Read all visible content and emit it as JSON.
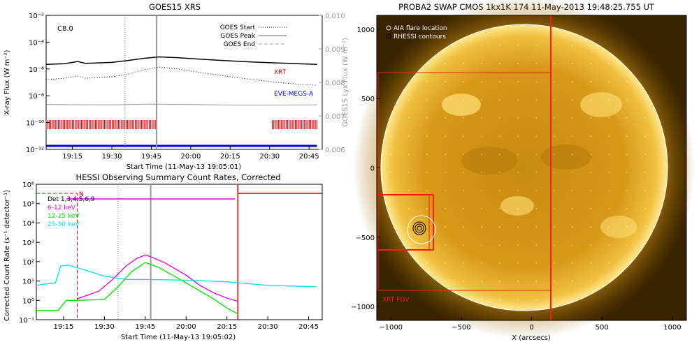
{
  "goes": {
    "title": "GOES15 XRS",
    "class_label": "C8.0",
    "ylabel": "X-ray Flux (W m⁻²)",
    "ylabel_right": "GOES15 Lyx Flux (W m⁻²)",
    "xlabel": "Start Time (11-May-13 19:05:01)",
    "xticks": [
      "19:15",
      "19:30",
      "19:45",
      "20:00",
      "20:15",
      "20:30",
      "20:45"
    ],
    "yticks": [
      "10⁻²",
      "10⁻⁴",
      "10⁻⁶",
      "10⁻⁸",
      "10⁻¹⁰",
      "10⁻¹²"
    ],
    "yticks_right": [
      "0.010",
      "0.009",
      "0.008",
      "0.007",
      "0.006"
    ],
    "legend": [
      "GOES Start",
      "GOES Peak",
      "GOES End"
    ],
    "labels": {
      "xrt": "XRT",
      "eve": "EVE-MEGS-A"
    },
    "colors": {
      "xrt": "#dd0000",
      "eve": "#0000cc",
      "peak": "#999999"
    }
  },
  "hessi": {
    "title": "HESSI Observing Summary Count Rates, Corrected",
    "ylabel": "Corrected Count Rate (s⁻¹ detector⁻¹)",
    "xlabel": "Start Time (11-May-13 19:05:02)",
    "xticks": [
      "19:15",
      "19:30",
      "19:45",
      "20:00",
      "20:15",
      "20:30",
      "20:45"
    ],
    "yticks": [
      "10⁶",
      "10⁵",
      "10⁴",
      "10³",
      "10²",
      "10¹",
      "10⁰",
      "10⁻¹"
    ],
    "legend": [
      {
        "label": "Det 1,3,4,5,6,9",
        "color": "#000000"
      },
      {
        "label": "6-12 keV",
        "color": "#e000e0"
      },
      {
        "label": "12-25 keV",
        "color": "#00dd00"
      },
      {
        "label": "25-50 keV",
        "color": "#00e0e0"
      }
    ],
    "marker": "N"
  },
  "swap": {
    "title": "PROBA2 SWAP CMOS 1kx1K 174 11-May-2013 19:48:25.755 UT",
    "legend": [
      "AIA flare location",
      "RHESSI contours"
    ],
    "fov_label": "XRT FOV",
    "xlabel": "X (arcsecs)",
    "xticks": [
      "−1000",
      "−500",
      "0",
      "500",
      "1000"
    ],
    "yticks": [
      "1000",
      "500",
      "0",
      "−500",
      "−1000"
    ]
  },
  "chart_data": [
    {
      "type": "line",
      "title": "GOES15 XRS",
      "xlabel": "Start Time (11-May-13 19:05:01)",
      "ylabel": "X-ray Flux (W m⁻²)",
      "ylabel_right": "GOES15 Lyx Flux (W m⁻²)",
      "x_range": [
        "19:05",
        "20:50"
      ],
      "ylim": [
        1e-12,
        0.01
      ],
      "ylim_right": [
        0.006,
        0.01
      ],
      "y_scale": "log",
      "series": [
        {
          "name": "",
          "color": "#000000",
          "x": [
            "19:05",
            "19:12",
            "19:17",
            "19:20",
            "19:30",
            "19:36",
            "19:42",
            "19:48",
            "19:55",
            "20:05",
            "20:15",
            "20:25",
            "20:35",
            "20:48"
          ],
          "y": [
            2.2e-06,
            2.5e-06,
            3.6e-06,
            2.6e-06,
            3.1e-06,
            4.2e-06,
            6.2e-06,
            8e-06,
            7e-06,
            5.2e-06,
            4e-06,
            3.2e-06,
            2.7e-06,
            2.2e-06
          ]
        },
        {
          "name": "",
          "color": "#000000",
          "style": "dotted",
          "x": [
            "19:05",
            "19:12",
            "19:17",
            "19:20",
            "19:30",
            "19:36",
            "19:42",
            "19:48",
            "19:55",
            "20:05",
            "20:15",
            "20:25",
            "20:35",
            "20:48"
          ],
          "y": [
            1.6e-07,
            2e-07,
            3e-07,
            2e-07,
            2.6e-07,
            4e-07,
            8.5e-07,
            1.4e-06,
            1e-06,
            5e-07,
            2.6e-07,
            1.5e-07,
            9e-08,
            6e-08
          ]
        },
        {
          "name": "",
          "color": "#999999",
          "x": [
            "19:05",
            "19:30",
            "19:45",
            "20:00",
            "20:20",
            "20:48"
          ],
          "y": [
            2.2e-09,
            2.1e-09,
            2.4e-09,
            2.2e-09,
            2e-09,
            2.1e-09
          ]
        }
      ],
      "markers": {
        "start": "19:35",
        "peak": "19:47"
      },
      "legend": [
        "GOES Start",
        "GOES Peak",
        "GOES End"
      ],
      "annotations": [
        "C8.0",
        "XRT",
        "EVE-MEGS-A"
      ],
      "bands": [
        {
          "label": "XRT",
          "from": "19:05",
          "to": "19:47"
        },
        {
          "label": "XRT",
          "from": "20:31",
          "to": "20:48"
        },
        {
          "label": "EVE-MEGS-A",
          "from": "19:05",
          "to": "20:48"
        }
      ],
      "legend_position": "top-right"
    },
    {
      "type": "line",
      "title": "HESSI Observing Summary Count Rates, Corrected",
      "xlabel": "Start Time (11-May-13 19:05:02)",
      "ylabel": "Corrected Count Rate (s⁻¹ detector⁻¹)",
      "x_range": [
        "19:05",
        "20:50"
      ],
      "ylim": [
        0.1,
        1000000.0
      ],
      "y_scale": "log",
      "series": [
        {
          "name": "6-12 keV",
          "color": "#e000e0",
          "x": [
            "19:20",
            "19:28",
            "19:33",
            "19:38",
            "19:42",
            "19:45",
            "19:47",
            "19:52",
            "20:00",
            "20:05",
            "20:10",
            "20:15",
            "20:19"
          ],
          "y": [
            1.2,
            3,
            12,
            60,
            150,
            220,
            180,
            90,
            20,
            6,
            2.5,
            1.3,
            0.9
          ]
        },
        {
          "name": "12-25 keV",
          "color": "#00dd00",
          "x": [
            "19:05",
            "19:13",
            "19:16",
            "19:20",
            "19:30",
            "19:35",
            "19:40",
            "19:45",
            "19:50",
            "20:00",
            "20:10",
            "20:15",
            "20:19"
          ],
          "y": [
            0.3,
            0.3,
            1.0,
            1.0,
            1.1,
            5,
            30,
            90,
            50,
            8,
            1.2,
            0.4,
            0.2
          ]
        },
        {
          "name": "25-50 keV",
          "color": "#00e0e0",
          "x": [
            "19:05",
            "19:12",
            "19:14",
            "19:17",
            "19:22",
            "19:30",
            "19:38",
            "19:45",
            "20:00",
            "20:15",
            "20:30",
            "20:48"
          ],
          "y": [
            6,
            8,
            60,
            65,
            40,
            18,
            12,
            12,
            11,
            9,
            6,
            5
          ]
        }
      ],
      "legend": [
        "Det 1,3,4,5,6,9",
        "6-12 keV",
        "12-25 keV",
        "25-50 keV"
      ],
      "annotations": [
        "N"
      ]
    },
    {
      "type": "heatmap",
      "title": "PROBA2 SWAP CMOS 1kx1K 174 11-May-2013 19:48:25.755 UT",
      "xlabel": "X (arcsecs)",
      "xlim": [
        -1100,
        1100
      ],
      "ylim": [
        -1100,
        1100
      ],
      "legend": [
        "AIA flare location",
        "RHESSI contours"
      ],
      "annotations": [
        "XRT FOV"
      ],
      "legend_position": "top-left"
    }
  ]
}
